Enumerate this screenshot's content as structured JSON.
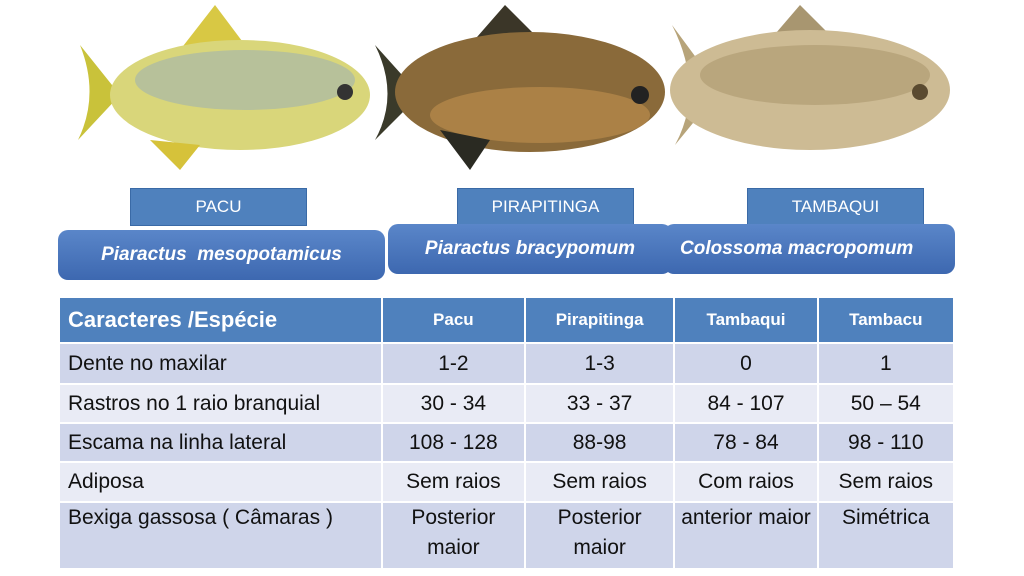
{
  "species": [
    {
      "common": "PACU",
      "scientific": "Piaractus  mesopotamicus"
    },
    {
      "common": "PIRAPITINGA",
      "scientific": "Piaractus bracypomum"
    },
    {
      "common": "TAMBAQUI",
      "scientific": "Colossoma macropomum"
    }
  ],
  "table": {
    "header": [
      "Caracteres /Espécie",
      "Pacu",
      "Pirapitinga",
      "Tambaqui",
      "Tambacu"
    ],
    "rows": [
      [
        "Dente no maxilar",
        "1-2",
        "1-3",
        "0",
        "1"
      ],
      [
        "Rastros no 1 raio branquial",
        "30 - 34",
        "33 - 37",
        "84 - 107",
        "50 – 54"
      ],
      [
        "Escama na linha lateral",
        "108 - 128",
        "88-98",
        "78 - 84",
        "98 - 110"
      ],
      [
        "Adiposa",
        "Sem raios",
        "Sem raios",
        "Com raios",
        "Sem raios"
      ],
      [
        "Bexiga gassosa ( Câmaras )",
        "Posterior maior",
        "Posterior maior",
        "anterior maior",
        "Simétrica"
      ]
    ]
  }
}
